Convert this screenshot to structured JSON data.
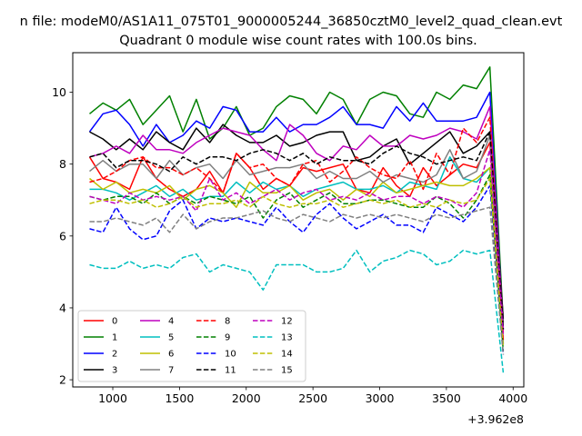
{
  "figure": {
    "suptitle": "n file: modeM0/AS1A11_075T01_9000005244_36850cztM0_level2_quad_clean.evt",
    "title": "Quadrant 0 module wise count rates with 100.0s bins.",
    "offset_label": "+3.962e8"
  },
  "chart_data": {
    "type": "line",
    "title": "Quadrant 0 module wise count rates with 100.0s bins.",
    "xlabel": "",
    "ylabel": "",
    "x_offset": 396200000,
    "xlim": [
      700,
      4080
    ],
    "ylim": [
      1.8,
      11.1
    ],
    "xticks": [
      1000,
      1500,
      2000,
      2500,
      3000,
      3500,
      4000
    ],
    "yticks": [
      2,
      4,
      6,
      8,
      10
    ],
    "legend_position": "lower left",
    "legend_columns": 4,
    "x": [
      826,
      926,
      1026,
      1126,
      1226,
      1326,
      1426,
      1526,
      1626,
      1726,
      1826,
      1926,
      2026,
      2126,
      2226,
      2326,
      2426,
      2526,
      2626,
      2726,
      2826,
      2926,
      3026,
      3126,
      3226,
      3326,
      3426,
      3526,
      3626,
      3726,
      3826,
      3926
    ],
    "series": [
      {
        "name": "0",
        "color": "#ff0000",
        "style": "solid",
        "values": [
          8.2,
          7.6,
          7.5,
          7.3,
          8.2,
          7.6,
          7.3,
          7.1,
          7.3,
          7.8,
          7.2,
          8.3,
          7.9,
          7.3,
          7.6,
          7.4,
          7.9,
          7.8,
          7.9,
          8.0,
          7.3,
          7.2,
          7.9,
          7.4,
          7.1,
          7.9,
          7.4,
          7.7,
          8.0,
          7.9,
          8.6,
          3.3
        ]
      },
      {
        "name": "1",
        "color": "#008000",
        "style": "solid",
        "values": [
          9.4,
          9.7,
          9.5,
          9.8,
          9.1,
          9.5,
          9.9,
          8.9,
          9.8,
          8.7,
          9.0,
          9.6,
          8.8,
          9.0,
          9.6,
          9.9,
          9.8,
          9.4,
          10.0,
          9.8,
          9.1,
          9.8,
          10.0,
          9.9,
          9.4,
          9.3,
          10.0,
          9.8,
          10.2,
          10.1,
          10.7,
          3.6
        ]
      },
      {
        "name": "2",
        "color": "#0000ff",
        "style": "solid",
        "values": [
          8.9,
          9.4,
          9.5,
          9.1,
          8.5,
          9.1,
          8.6,
          8.8,
          9.2,
          9.0,
          9.6,
          9.5,
          8.9,
          8.9,
          9.3,
          8.9,
          9.1,
          9.1,
          9.3,
          9.6,
          9.1,
          9.1,
          9.0,
          9.6,
          9.2,
          9.7,
          9.2,
          9.2,
          9.2,
          9.3,
          10.0,
          3.4
        ]
      },
      {
        "name": "3",
        "color": "#000000",
        "style": "solid",
        "values": [
          8.9,
          8.7,
          8.4,
          8.7,
          8.4,
          8.9,
          8.6,
          8.4,
          9.0,
          8.6,
          9.1,
          8.8,
          8.6,
          8.6,
          8.8,
          8.5,
          8.6,
          8.8,
          8.9,
          8.9,
          8.1,
          8.2,
          8.5,
          8.7,
          8.0,
          8.3,
          8.6,
          8.9,
          8.3,
          8.5,
          8.9,
          3.7
        ]
      },
      {
        "name": "4",
        "color": "#bf00bf",
        "style": "solid",
        "values": [
          8.2,
          8.3,
          8.5,
          8.3,
          8.8,
          8.4,
          8.4,
          8.3,
          8.6,
          8.8,
          9.0,
          8.9,
          8.8,
          8.4,
          8.1,
          9.1,
          8.8,
          8.3,
          8.1,
          8.5,
          8.4,
          8.8,
          8.5,
          8.5,
          8.8,
          8.7,
          8.8,
          9.0,
          8.9,
          8.7,
          9.6,
          3.4
        ]
      },
      {
        "name": "5",
        "color": "#00bfbf",
        "style": "solid",
        "values": [
          7.3,
          7.3,
          7.2,
          7.0,
          7.2,
          7.4,
          7.1,
          7.3,
          7.0,
          7.1,
          7.1,
          7.5,
          7.2,
          7.5,
          7.3,
          7.4,
          7.1,
          7.3,
          7.4,
          7.5,
          7.3,
          7.3,
          7.4,
          7.2,
          7.5,
          7.4,
          7.3,
          8.2,
          7.6,
          7.5,
          7.9,
          3.0
        ]
      },
      {
        "name": "6",
        "color": "#bfbf00",
        "style": "solid",
        "values": [
          7.6,
          7.3,
          7.5,
          7.2,
          7.3,
          7.2,
          7.4,
          7.0,
          7.3,
          7.4,
          7.2,
          6.8,
          7.5,
          7.2,
          7.2,
          7.4,
          7.0,
          7.2,
          7.3,
          7.0,
          7.3,
          7.1,
          7.5,
          7.2,
          7.3,
          7.4,
          7.5,
          7.4,
          7.4,
          7.6,
          7.9,
          3.1
        ]
      },
      {
        "name": "7",
        "color": "#808080",
        "style": "solid",
        "values": [
          7.8,
          8.1,
          7.8,
          8.0,
          8.0,
          7.6,
          8.1,
          7.7,
          7.9,
          8.0,
          7.6,
          8.1,
          7.7,
          7.8,
          7.9,
          7.9,
          8.0,
          7.6,
          7.8,
          7.6,
          7.6,
          7.8,
          7.5,
          7.7,
          7.6,
          7.5,
          7.7,
          8.4,
          7.6,
          7.8,
          8.8,
          3.0
        ]
      },
      {
        "name": "8",
        "color": "#ff0000",
        "style": "dashed",
        "values": [
          7.5,
          7.6,
          7.8,
          8.1,
          8.2,
          7.9,
          7.9,
          7.7,
          7.9,
          7.6,
          7.2,
          8.3,
          7.9,
          8.0,
          7.6,
          7.4,
          8.0,
          8.1,
          7.5,
          7.8,
          8.2,
          7.9,
          7.7,
          7.6,
          8.1,
          7.3,
          8.3,
          7.7,
          9.0,
          8.6,
          9.3,
          3.1
        ]
      },
      {
        "name": "9",
        "color": "#008000",
        "style": "dashed",
        "values": [
          7.1,
          7.0,
          7.1,
          7.1,
          6.9,
          7.2,
          6.9,
          7.1,
          6.9,
          7.1,
          7.0,
          6.9,
          7.1,
          6.5,
          7.0,
          7.2,
          6.8,
          7.0,
          7.2,
          6.9,
          6.9,
          7.0,
          7.0,
          6.9,
          6.8,
          6.8,
          7.1,
          6.9,
          6.5,
          7.0,
          7.7,
          2.8
        ]
      },
      {
        "name": "10",
        "color": "#0000ff",
        "style": "dashed",
        "values": [
          6.2,
          6.1,
          6.8,
          6.2,
          5.9,
          6.0,
          6.7,
          7.0,
          6.2,
          6.5,
          6.4,
          6.5,
          6.4,
          6.3,
          6.8,
          6.4,
          6.1,
          6.6,
          6.9,
          6.5,
          6.2,
          6.4,
          6.6,
          6.3,
          6.3,
          6.1,
          6.8,
          6.6,
          6.4,
          6.8,
          7.4,
          2.7
        ]
      },
      {
        "name": "11",
        "color": "#000000",
        "style": "dashed",
        "values": [
          8.2,
          8.3,
          7.9,
          8.1,
          8.1,
          8.0,
          7.8,
          8.2,
          8.0,
          8.2,
          8.2,
          8.1,
          8.3,
          8.4,
          8.3,
          8.1,
          8.3,
          8.0,
          8.2,
          8.1,
          8.1,
          8.0,
          8.3,
          8.5,
          8.3,
          8.2,
          8.0,
          8.1,
          8.2,
          8.1,
          8.9,
          3.4
        ]
      },
      {
        "name": "12",
        "color": "#bf00bf",
        "style": "dashed",
        "values": [
          7.1,
          7.0,
          6.9,
          7.2,
          7.0,
          7.1,
          7.0,
          7.1,
          6.7,
          7.6,
          7.0,
          7.2,
          6.9,
          7.1,
          7.3,
          7.0,
          7.2,
          7.3,
          7.0,
          7.1,
          7.0,
          7.2,
          7.0,
          7.1,
          7.1,
          6.9,
          7.1,
          7.0,
          6.8,
          7.2,
          8.4,
          3.2
        ]
      },
      {
        "name": "13",
        "color": "#00bfbf",
        "style": "dashed",
        "values": [
          5.2,
          5.1,
          5.1,
          5.3,
          5.1,
          5.2,
          5.1,
          5.4,
          5.5,
          5.0,
          5.2,
          5.1,
          5.0,
          4.5,
          5.2,
          5.2,
          5.2,
          5.0,
          5.0,
          5.1,
          5.6,
          5.0,
          5.3,
          5.4,
          5.6,
          5.5,
          5.2,
          5.3,
          5.6,
          5.5,
          5.6,
          2.2
        ]
      },
      {
        "name": "14",
        "color": "#bfbf00",
        "style": "dashed",
        "values": [
          6.9,
          7.0,
          7.0,
          6.9,
          7.0,
          6.8,
          6.9,
          7.1,
          6.8,
          6.9,
          6.9,
          7.0,
          6.8,
          7.1,
          6.9,
          6.8,
          6.9,
          6.9,
          7.0,
          6.8,
          6.9,
          7.0,
          6.9,
          7.0,
          6.8,
          6.9,
          6.8,
          7.0,
          6.9,
          7.0,
          7.6,
          2.9
        ]
      },
      {
        "name": "15",
        "color": "#808080",
        "style": "dashed",
        "values": [
          6.4,
          6.4,
          6.5,
          6.4,
          6.3,
          6.5,
          6.1,
          6.6,
          6.2,
          6.4,
          6.5,
          6.5,
          6.6,
          6.7,
          6.5,
          6.4,
          6.6,
          6.5,
          6.4,
          6.6,
          6.5,
          6.6,
          6.5,
          6.6,
          6.5,
          6.4,
          6.6,
          6.5,
          6.6,
          6.7,
          6.8,
          2.7
        ]
      }
    ]
  }
}
